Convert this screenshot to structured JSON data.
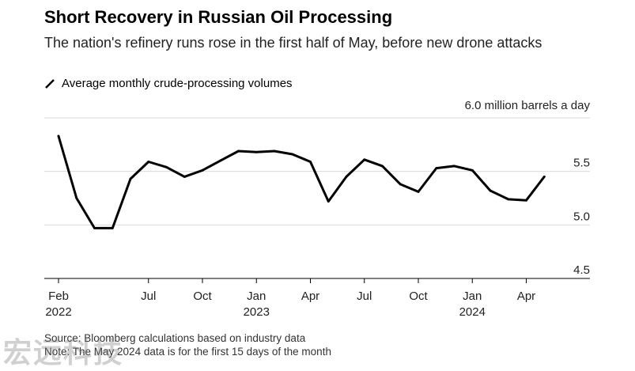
{
  "title": "Short Recovery in Russian Oil Processing",
  "subtitle": "The nation's refinery runs rose in the first half of May, before new drone attacks",
  "footer": {
    "source": "Source: Bloomberg calculations based on industry data",
    "note": "Note: The May 2024 data is for the first 15 days of the month"
  },
  "watermark": "宏远科技",
  "colors": {
    "line": "#000000",
    "grid": "#d9d9d9",
    "axis": "#000000"
  },
  "chart_data": {
    "type": "line",
    "title": "Short Recovery in Russian Oil Processing",
    "subtitle": "The nation's refinery runs rose in the first half of May, before new drone attacks",
    "unit_label": "6.0 million barrels a day",
    "ylim": [
      4.5,
      6.0
    ],
    "yticks": [
      {
        "value": 6.0,
        "label": ""
      },
      {
        "value": 5.5,
        "label": "5.5"
      },
      {
        "value": 5.0,
        "label": "5.0"
      },
      {
        "value": 4.5,
        "label": "4.5"
      }
    ],
    "grid": true,
    "xticks": [
      {
        "index": 0,
        "label": "Feb",
        "year": "2022"
      },
      {
        "index": 5,
        "label": "Jul",
        "year": ""
      },
      {
        "index": 8,
        "label": "Oct",
        "year": ""
      },
      {
        "index": 11,
        "label": "Jan",
        "year": "2023"
      },
      {
        "index": 14,
        "label": "Apr",
        "year": ""
      },
      {
        "index": 17,
        "label": "Jul",
        "year": ""
      },
      {
        "index": 20,
        "label": "Oct",
        "year": ""
      },
      {
        "index": 23,
        "label": "Jan",
        "year": "2024"
      },
      {
        "index": 26,
        "label": "Apr",
        "year": ""
      }
    ],
    "series": [
      {
        "name": "Average monthly crude-processing volumes",
        "x": [
          "2022-02",
          "2022-03",
          "2022-04",
          "2022-05",
          "2022-06",
          "2022-07",
          "2022-08",
          "2022-09",
          "2022-10",
          "2022-11",
          "2022-12",
          "2023-01",
          "2023-02",
          "2023-03",
          "2023-04",
          "2023-05",
          "2023-06",
          "2023-07",
          "2023-08",
          "2023-09",
          "2023-10",
          "2023-11",
          "2023-12",
          "2024-01",
          "2024-02",
          "2024-03",
          "2024-04",
          "2024-05"
        ],
        "values": [
          5.83,
          5.25,
          4.97,
          4.97,
          5.43,
          5.59,
          5.54,
          5.45,
          5.51,
          5.6,
          5.69,
          5.68,
          5.69,
          5.66,
          5.59,
          5.22,
          5.45,
          5.61,
          5.55,
          5.38,
          5.31,
          5.53,
          5.55,
          5.51,
          5.32,
          5.24,
          5.23,
          5.45
        ]
      }
    ]
  }
}
